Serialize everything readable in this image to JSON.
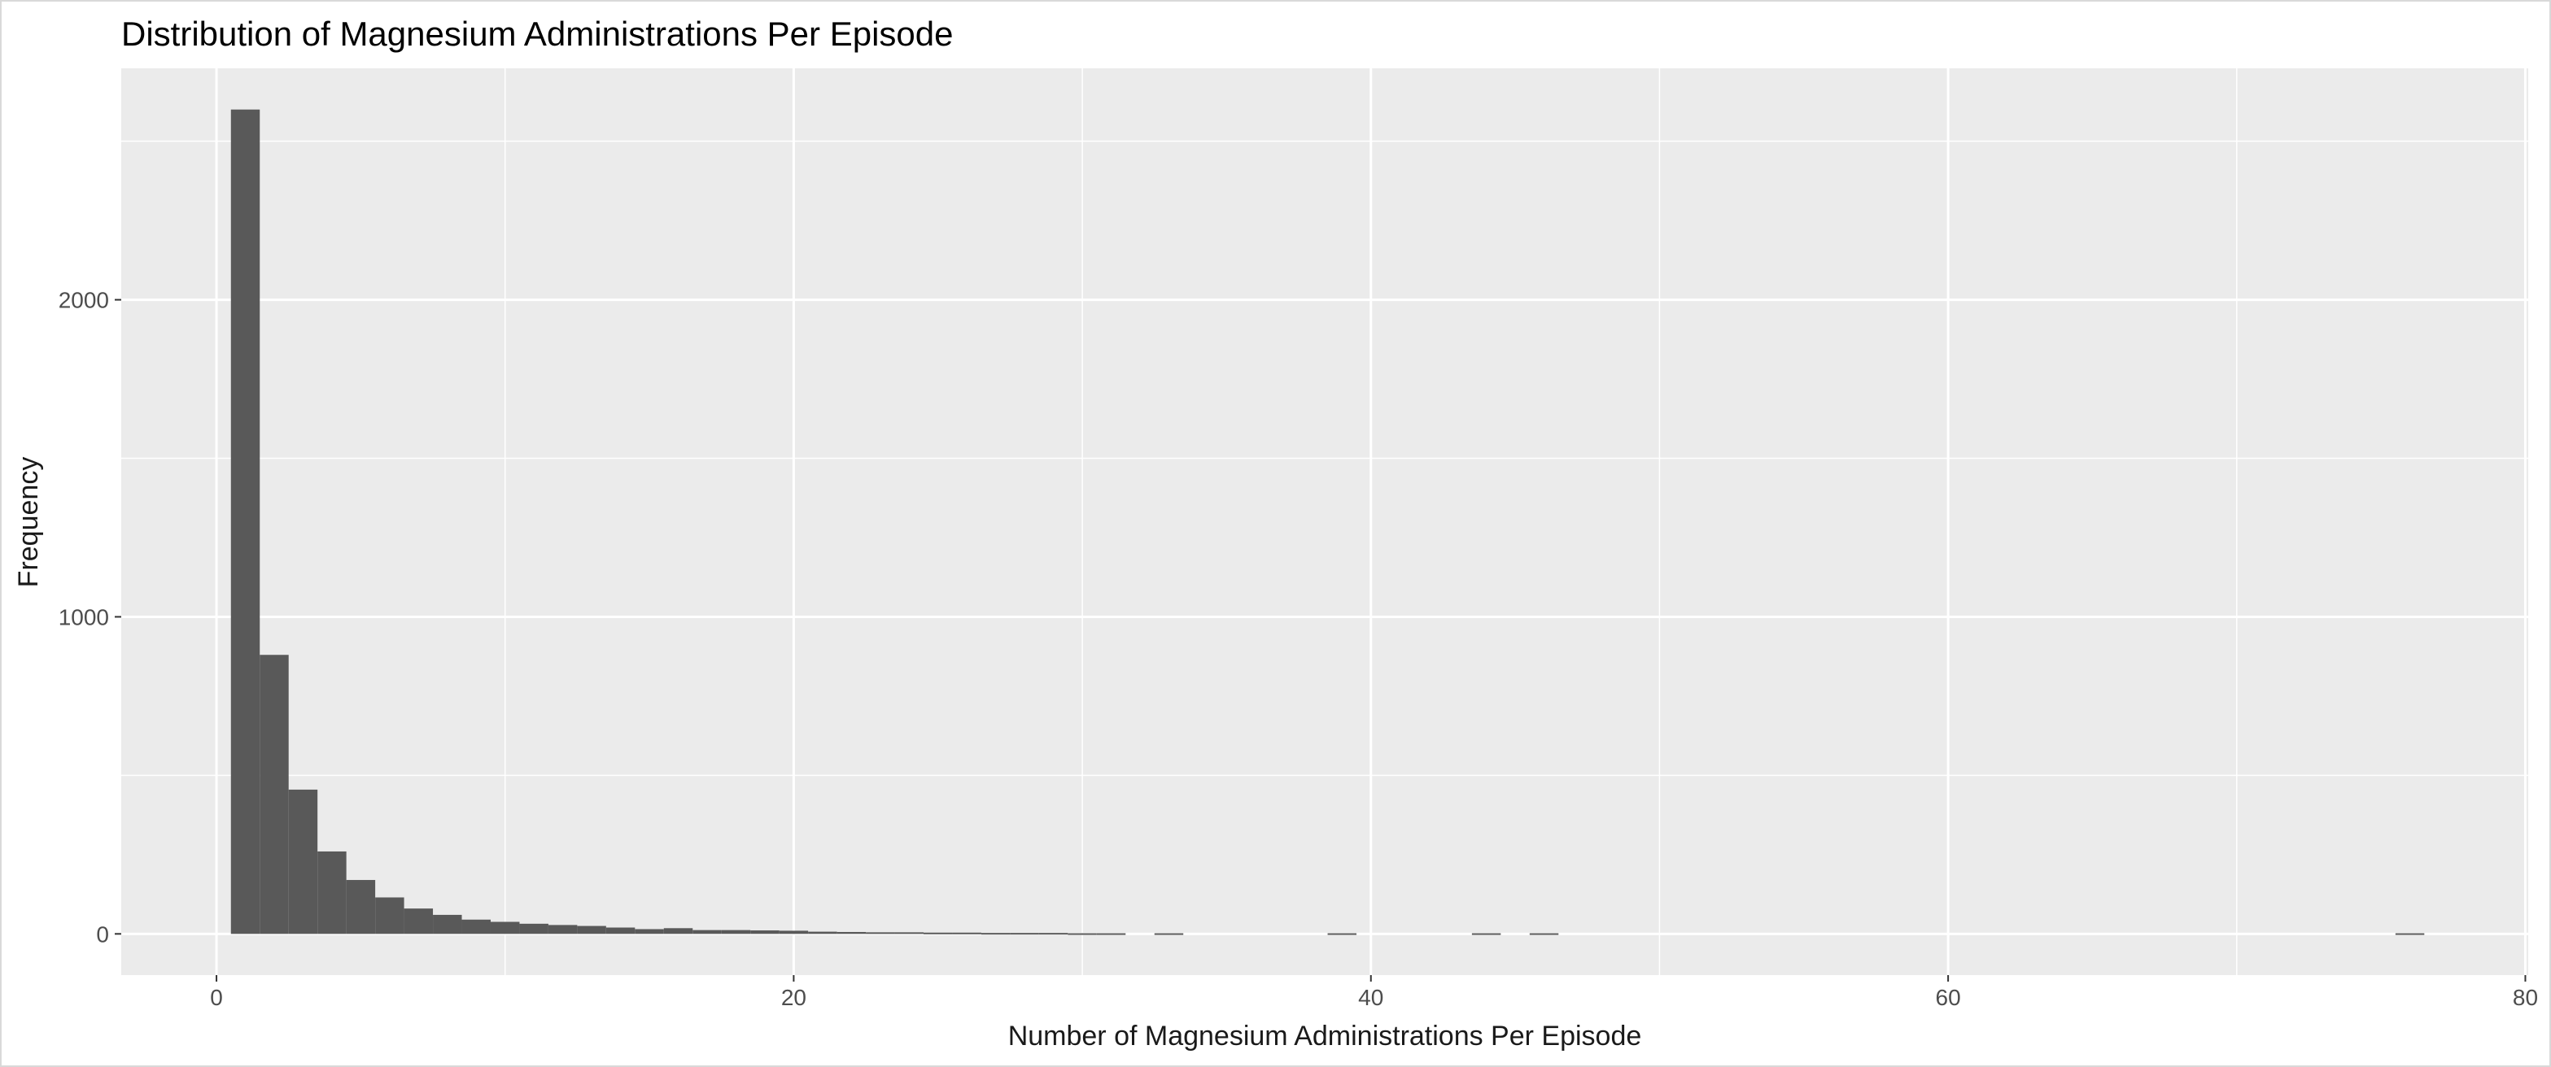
{
  "chart_data": {
    "type": "bar",
    "title": "Distribution of Magnesium Administrations Per Episode",
    "xlabel": "Number of Magnesium Administrations Per Episode",
    "ylabel": "Frequency",
    "xlim": [
      -3.3,
      80.1
    ],
    "ylim": [
      -130,
      2730
    ],
    "x_ticks": [
      0,
      20,
      40,
      60,
      80
    ],
    "y_ticks": [
      0,
      1000,
      2000
    ],
    "x_tick_labels": [
      "0",
      "20",
      "40",
      "60",
      "80"
    ],
    "y_tick_labels": [
      "0",
      "1000",
      "2000"
    ],
    "grid": true,
    "panel_background": "#EBEBEB",
    "bar_color": "#595959",
    "gridline_color": "#FFFFFF",
    "bin_width": 1,
    "bins": [
      {
        "x": 1,
        "count": 2600
      },
      {
        "x": 2,
        "count": 880
      },
      {
        "x": 3,
        "count": 455
      },
      {
        "x": 4,
        "count": 260
      },
      {
        "x": 5,
        "count": 170
      },
      {
        "x": 6,
        "count": 115
      },
      {
        "x": 7,
        "count": 80
      },
      {
        "x": 8,
        "count": 60
      },
      {
        "x": 9,
        "count": 45
      },
      {
        "x": 10,
        "count": 38
      },
      {
        "x": 11,
        "count": 32
      },
      {
        "x": 12,
        "count": 28
      },
      {
        "x": 13,
        "count": 25
      },
      {
        "x": 14,
        "count": 20
      },
      {
        "x": 15,
        "count": 15
      },
      {
        "x": 16,
        "count": 18
      },
      {
        "x": 17,
        "count": 12
      },
      {
        "x": 18,
        "count": 12
      },
      {
        "x": 19,
        "count": 11
      },
      {
        "x": 20,
        "count": 10
      },
      {
        "x": 21,
        "count": 7
      },
      {
        "x": 22,
        "count": 6
      },
      {
        "x": 23,
        "count": 5
      },
      {
        "x": 24,
        "count": 5
      },
      {
        "x": 25,
        "count": 4
      },
      {
        "x": 26,
        "count": 4
      },
      {
        "x": 27,
        "count": 3
      },
      {
        "x": 28,
        "count": 3
      },
      {
        "x": 29,
        "count": 3
      },
      {
        "x": 30,
        "count": 2
      },
      {
        "x": 31,
        "count": 2
      },
      {
        "x": 33,
        "count": 2
      },
      {
        "x": 39,
        "count": 2
      },
      {
        "x": 44,
        "count": 2
      },
      {
        "x": 46,
        "count": 2
      },
      {
        "x": 76,
        "count": 2
      }
    ]
  }
}
